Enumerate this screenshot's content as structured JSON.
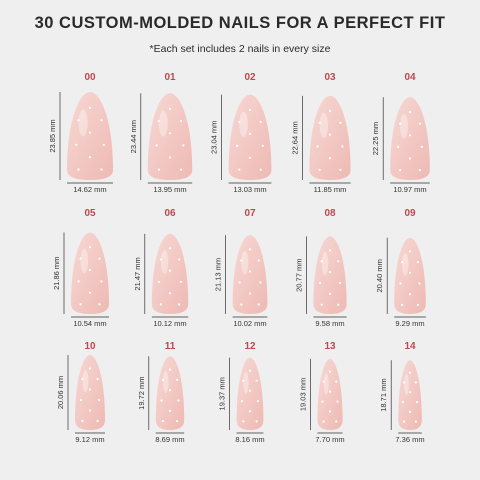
{
  "header": {
    "title": "30 CUSTOM-MOLDED NAILS FOR A PERFECT FIT",
    "subtitle": "*Each set includes 2 nails in every size"
  },
  "nails": [
    {
      "label": "00",
      "height": "23.85 mm",
      "width": "14.62 mm"
    },
    {
      "label": "01",
      "height": "23.44 mm",
      "width": "13.95 mm"
    },
    {
      "label": "02",
      "height": "23.04 mm",
      "width": "13.03 mm"
    },
    {
      "label": "03",
      "height": "22.64 mm",
      "width": "11.85 mm"
    },
    {
      "label": "04",
      "height": "22.25 mm",
      "width": "10.97 mm"
    },
    {
      "label": "05",
      "height": "21.86 mm",
      "width": "10.54 mm"
    },
    {
      "label": "06",
      "height": "21.47 mm",
      "width": "10.12 mm"
    },
    {
      "label": "07",
      "height": "21.13 mm",
      "width": "10.02 mm"
    },
    {
      "label": "08",
      "height": "20.77 mm",
      "width": "9.58 mm"
    },
    {
      "label": "09",
      "height": "20.40 mm",
      "width": "9.29 mm"
    },
    {
      "label": "10",
      "height": "20.06 mm",
      "width": "9.12 mm"
    },
    {
      "label": "11",
      "height": "19.72 mm",
      "width": "8.69 mm"
    },
    {
      "label": "12",
      "height": "19.37 mm",
      "width": "8.16 mm"
    },
    {
      "label": "13",
      "height": "19.03 mm",
      "width": "7.70 mm"
    },
    {
      "label": "14",
      "height": "18.71 mm",
      "width": "7.36 mm"
    }
  ]
}
